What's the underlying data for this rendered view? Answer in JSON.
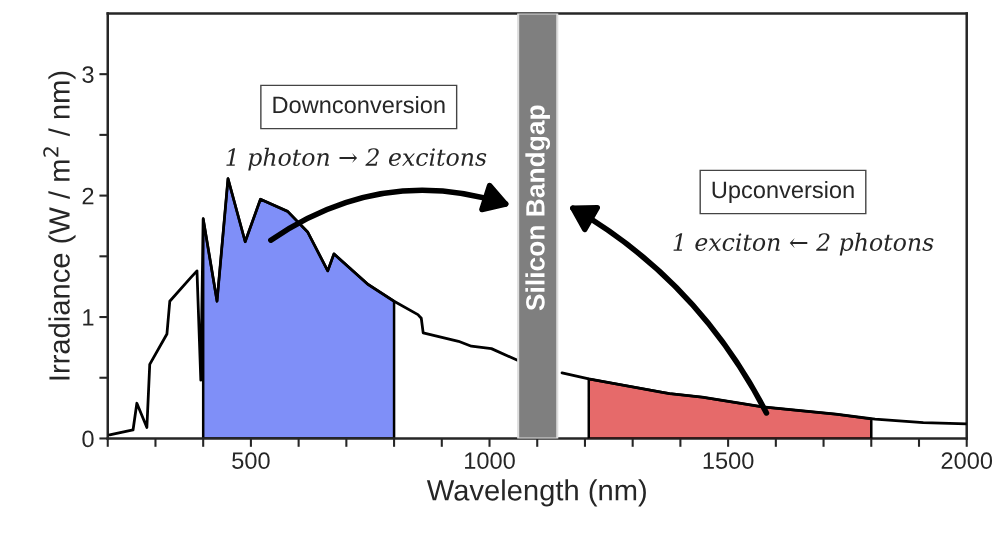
{
  "chart_data": {
    "type": "line",
    "xlabel": "Wavelength (nm)",
    "ylabel": "Irradiance (W / m$^{2}$ / nm)",
    "xlim": [
      200,
      2000
    ],
    "ylim": [
      0,
      3.5
    ],
    "xticks": [
      {
        "value": 200,
        "label": null
      },
      {
        "value": 300,
        "label": null
      },
      {
        "value": 400,
        "label": null
      },
      500,
      {
        "value": 600,
        "label": null
      },
      {
        "value": 700,
        "label": null
      },
      {
        "value": 800,
        "label": null
      },
      {
        "value": 900,
        "label": null
      },
      1000,
      {
        "value": 1100,
        "label": null
      },
      {
        "value": 1200,
        "label": null
      },
      {
        "value": 1300,
        "label": null
      },
      {
        "value": 1400,
        "label": null
      },
      1500,
      {
        "value": 1600,
        "label": null
      },
      {
        "value": 1700,
        "label": null
      },
      {
        "value": 1800,
        "label": null
      },
      {
        "value": 1900,
        "label": null
      },
      2000
    ],
    "yticks": [
      0,
      {
        "value": 0.5,
        "label": null
      },
      1,
      {
        "value": 1.5,
        "label": null
      },
      2,
      {
        "value": 2.5,
        "label": null
      },
      3
    ],
    "series": [
      {
        "type": "area",
        "color": "#7f8ff8",
        "x": [
          400,
          429,
          452,
          488,
          520,
          577,
          619,
          661,
          674,
          745,
          800
        ],
        "values": [
          1.81,
          1.13,
          2.14,
          1.62,
          1.97,
          1.87,
          1.7,
          1.38,
          1.52,
          1.27,
          1.13
        ]
      },
      {
        "type": "area",
        "color": "#e66a6a",
        "x": [
          1208,
          1362,
          1377,
          1446,
          1573,
          1726,
          1800
        ],
        "values": [
          0.49,
          0.38,
          0.37,
          0.34,
          0.26,
          0.2,
          0.16
        ]
      },
      {
        "color": "#000000",
        "x": [
          204,
          253,
          261,
          282,
          288,
          324,
          330,
          373,
          387,
          395,
          400,
          429,
          452,
          488,
          520,
          577,
          619,
          661,
          674,
          745,
          800,
          850,
          857,
          861,
          935,
          962,
          1004,
          1061,
          null,
          1152,
          1208,
          1362,
          1377,
          1446,
          1573,
          1726,
          1808,
          1909,
          2000
        ],
        "values": [
          0.03,
          0.07,
          0.29,
          0.09,
          0.61,
          0.86,
          1.13,
          1.32,
          1.38,
          0.48,
          1.81,
          1.13,
          2.14,
          1.62,
          1.97,
          1.87,
          1.7,
          1.38,
          1.52,
          1.27,
          1.13,
          1.02,
          0.99,
          0.87,
          0.8,
          0.76,
          0.74,
          0.64,
          null,
          0.54,
          0.49,
          0.38,
          0.37,
          0.34,
          0.26,
          0.2,
          0.16,
          0.13,
          0.12
        ]
      }
    ],
    "bands": [
      {
        "axis": "x",
        "from": 1060,
        "to": 1142,
        "label": "Silicon Bandgap",
        "color": "#7f7f7f"
      }
    ],
    "annotations": [
      "Downconversion",
      "1 photon → 2 excitons",
      "Upconversion",
      "1 exciton ← 2 photons"
    ],
    "grid": false,
    "legend": false
  }
}
